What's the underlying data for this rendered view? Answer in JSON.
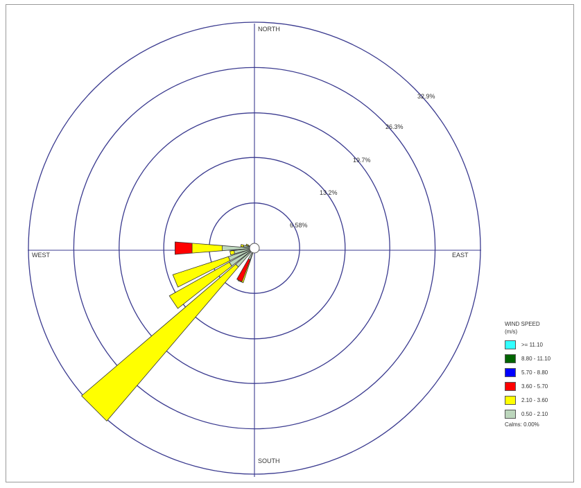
{
  "chart_data": {
    "type": "wind_rose",
    "directions": {
      "north": "NORTH",
      "south": "SOUTH",
      "east": "EAST",
      "west": "WEST"
    },
    "ring_labels": [
      "6.58%",
      "13.2%",
      "19.7%",
      "26.3%",
      "32.9%"
    ],
    "ring_values": [
      6.58,
      13.2,
      19.7,
      26.3,
      32.9
    ],
    "legend_title": [
      "WIND SPEED",
      "(m/s)"
    ],
    "legend": [
      {
        "label": ">= 11.10",
        "color": "#33ffff"
      },
      {
        "label": "8.80 - 11.10",
        "color": "#006400"
      },
      {
        "label": "5.70 - 8.80",
        "color": "#0000ff"
      },
      {
        "label": "3.60 - 5.70",
        "color": "#ff0000"
      },
      {
        "label": "2.10 - 3.60",
        "color": "#ffff00"
      },
      {
        "label": "0.50 - 2.10",
        "color": "#bcd6bc"
      }
    ],
    "calms": "Calms: 0.00%",
    "petals": [
      {
        "direction_deg": 180.0,
        "segments": [
          0.3,
          0.0
        ]
      },
      {
        "direction_deg": 202.5,
        "segments": [
          2.0,
          3.3,
          0.0
        ]
      },
      {
        "direction_deg": 225.0,
        "segments": [
          3.6,
          29.5
        ]
      },
      {
        "direction_deg": 236.25,
        "segments": [
          4.2,
          10.0
        ]
      },
      {
        "direction_deg": 247.5,
        "segments": [
          4.0,
          8.5
        ]
      },
      {
        "direction_deg": 258.75,
        "segments": [
          3.0,
          0.6
        ]
      },
      {
        "direction_deg": 270.0,
        "segments": [
          4.7,
          4.4,
          2.5
        ]
      },
      {
        "direction_deg": 281.25,
        "segments": [
          1.6,
          0.4
        ]
      },
      {
        "direction_deg": 292.5,
        "segments": [
          1.0,
          0.3
        ]
      },
      {
        "direction_deg": 205.0,
        "segments": [
          1.8,
          0.0,
          3.4
        ]
      }
    ],
    "segment_colors": [
      "#bcd6bc",
      "#ffff00",
      "#ff0000"
    ]
  }
}
